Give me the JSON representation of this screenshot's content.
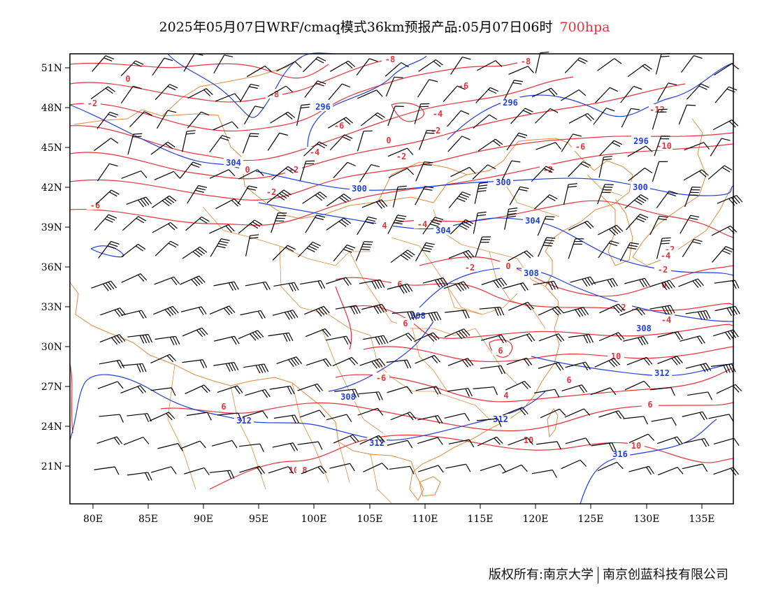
{
  "title": {
    "main": "2025年05月07日WRF/cmaq模式36km预报产品:05月07日06时",
    "level": "700hpa"
  },
  "footer": {
    "copyright": "版权所有:南京大学",
    "company": "南京创蓝科技有限公司"
  },
  "colors": {
    "temperature": "#e8333a",
    "geopotential": "#1f3fe0",
    "border": "#e08a3a",
    "wind": "#000000"
  },
  "axes": {
    "lon_labels": [
      "80E",
      "85E",
      "90E",
      "95E",
      "100E",
      "105E",
      "110E",
      "115E",
      "120E",
      "125E",
      "130E",
      "135E"
    ],
    "lat_labels": [
      "51N",
      "48N",
      "45N",
      "42N",
      "39N",
      "36N",
      "33N",
      "30N",
      "27N",
      "24N",
      "21N"
    ]
  },
  "contour_labels": {
    "temperature": [
      "-8",
      "-8",
      "-8",
      "0",
      "-2",
      "-6",
      "-4",
      "-12",
      "-6",
      "-2",
      "-6",
      "0",
      "-2",
      "-10",
      "0",
      "-4",
      "-2",
      "-2",
      "-2",
      "-4",
      "-2",
      "-6",
      "4",
      "0",
      "-2",
      "-4",
      "-2",
      "0",
      "6",
      "6",
      "2",
      "-4",
      "6",
      "10",
      "6",
      "-6",
      "4",
      "6",
      "6",
      "10",
      "10",
      "10",
      "8"
    ],
    "geopotential": [
      "296",
      "296",
      "296",
      "304",
      "300",
      "300",
      "300",
      "304",
      "304",
      "308",
      "308",
      "308",
      "312",
      "308",
      "312",
      "312",
      "312",
      "316"
    ]
  }
}
